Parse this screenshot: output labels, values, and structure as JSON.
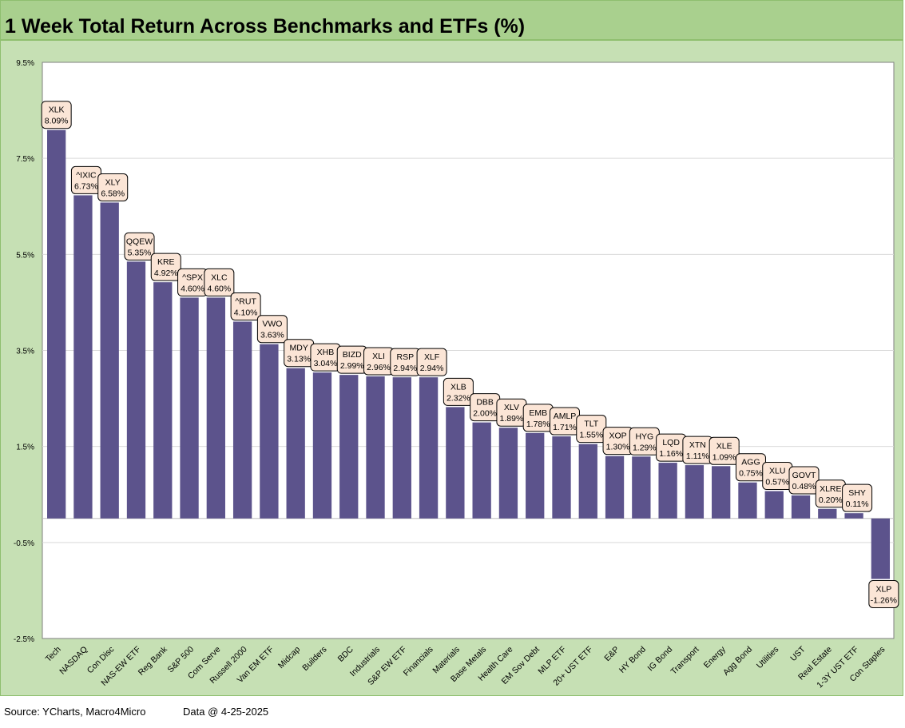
{
  "title": "1 Week Total Return Across Benchmarks and ETFs (%)",
  "footer": {
    "source": "Source: YCharts, Macro4Micro",
    "date": "Data @ 4-25-2025"
  },
  "colors": {
    "bar": "#5c538c",
    "title_bg": "#a9d08e",
    "frame_bg": "#c6e0b4",
    "label_bg": "#fbe5d6"
  },
  "chart_data": {
    "type": "bar",
    "categories": [
      "Tech",
      "NASDAQ",
      "Con Disc",
      "NAS-EW ETF",
      "Reg Bank",
      "S&P 500",
      "Com Serve",
      "Russell 2000",
      "Van EM ETF",
      "Midcap",
      "Builders",
      "BDC",
      "Industrials",
      "S&P EW ETF",
      "Financials",
      "Materials",
      "Base Metals",
      "Health Care",
      "EM Sov Debt",
      "MLP ETF",
      "20+ UST ETF",
      "E&P",
      "HY Bond",
      "IG Bond",
      "Transport",
      "Energy",
      "Agg Bond",
      "Utilities",
      "UST",
      "Real Estate",
      "1-3Y UST ETF",
      "Con Staples"
    ],
    "tickers": [
      "XLK",
      "^IXIC",
      "XLY",
      "QQEW",
      "KRE",
      "^SPX",
      "XLC",
      "^RUT",
      "VWO",
      "MDY",
      "XHB",
      "BIZD",
      "XLI",
      "RSP",
      "XLF",
      "XLB",
      "DBB",
      "XLV",
      "EMB",
      "AMLP",
      "TLT",
      "XOP",
      "HYG",
      "LQD",
      "XTN",
      "XLE",
      "AGG",
      "XLU",
      "GOVT",
      "XLRE",
      "SHY",
      "XLP"
    ],
    "values": [
      8.09,
      6.73,
      6.58,
      5.35,
      4.92,
      4.6,
      4.6,
      4.1,
      3.63,
      3.13,
      3.04,
      2.99,
      2.96,
      2.94,
      2.94,
      2.32,
      2.0,
      1.89,
      1.78,
      1.71,
      1.55,
      1.3,
      1.29,
      1.16,
      1.11,
      1.09,
      0.75,
      0.57,
      0.48,
      0.2,
      0.11,
      -1.26
    ],
    "value_labels": [
      "8.09%",
      "6.73%",
      "6.58%",
      "5.35%",
      "4.92%",
      "4.60%",
      "4.60%",
      "4.10%",
      "3.63%",
      "3.13%",
      "3.04%",
      "2.99%",
      "2.96%",
      "2.94%",
      "2.94%",
      "2.32%",
      "2.00%",
      "1.89%",
      "1.78%",
      "1.71%",
      "1.55%",
      "1.30%",
      "1.29%",
      "1.16%",
      "1.11%",
      "1.09%",
      "0.75%",
      "0.57%",
      "0.48%",
      "0.20%",
      "0.11%",
      "-1.26%"
    ],
    "yticks": [
      9.5,
      7.5,
      5.5,
      3.5,
      1.5,
      -0.5,
      -2.5
    ],
    "ytick_labels": [
      "9.5%",
      "7.5%",
      "5.5%",
      "3.5%",
      "1.5%",
      "-0.5%",
      "-2.5%"
    ],
    "ylim": [
      -2.5,
      9.5
    ],
    "grid": true,
    "xlabel": "",
    "ylabel": ""
  }
}
